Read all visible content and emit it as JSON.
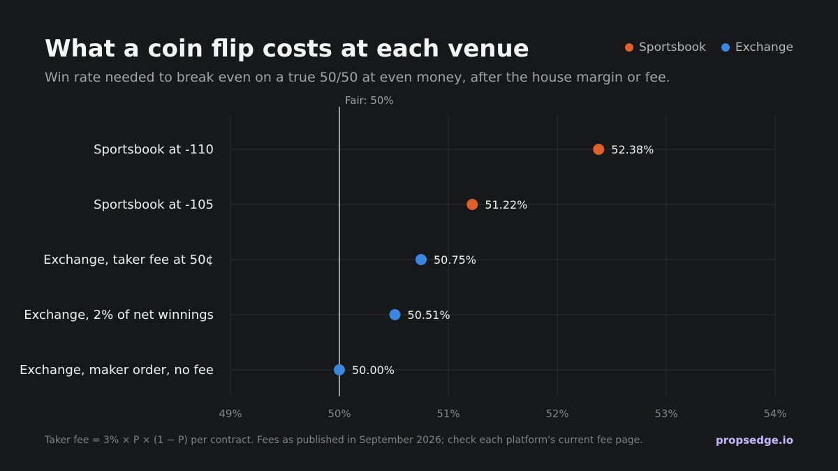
{
  "title": "What a coin flip costs at each venue",
  "subtitle": "Win rate needed to break even on a true 50/50 at even money, after the house margin or fee.",
  "legend": [
    {
      "name": "Sportsbook",
      "color": "#e0602a"
    },
    {
      "name": "Exchange",
      "color": "#3b87e0"
    }
  ],
  "footnote": "Taker fee = 3% × P × (1 − P) per contract. Fees as published in September 2026; check each platform's current fee page.",
  "brand": "propsedge.io",
  "chart_data": {
    "type": "scatter",
    "orientation": "horizontal-dot",
    "xlim": [
      49,
      54
    ],
    "x_ticks": [
      49,
      50,
      51,
      52,
      53,
      54
    ],
    "x_tick_labels": [
      "49%",
      "50%",
      "51%",
      "52%",
      "53%",
      "54%"
    ],
    "reference_line": {
      "value": 50,
      "label": "Fair: 50%"
    },
    "grid": true,
    "legend_position": "top-right",
    "points": [
      {
        "category": "Sportsbook at -110",
        "value": 52.38,
        "label": "52.38%",
        "series": "Sportsbook"
      },
      {
        "category": "Sportsbook at -105",
        "value": 51.22,
        "label": "51.22%",
        "series": "Sportsbook"
      },
      {
        "category": "Exchange, taker fee at 50¢",
        "value": 50.75,
        "label": "50.75%",
        "series": "Exchange"
      },
      {
        "category": "Exchange, 2% of net winnings",
        "value": 50.51,
        "label": "50.51%",
        "series": "Exchange"
      },
      {
        "category": "Exchange, maker order, no fee",
        "value": 50.0,
        "label": "50.00%",
        "series": "Exchange"
      }
    ]
  }
}
